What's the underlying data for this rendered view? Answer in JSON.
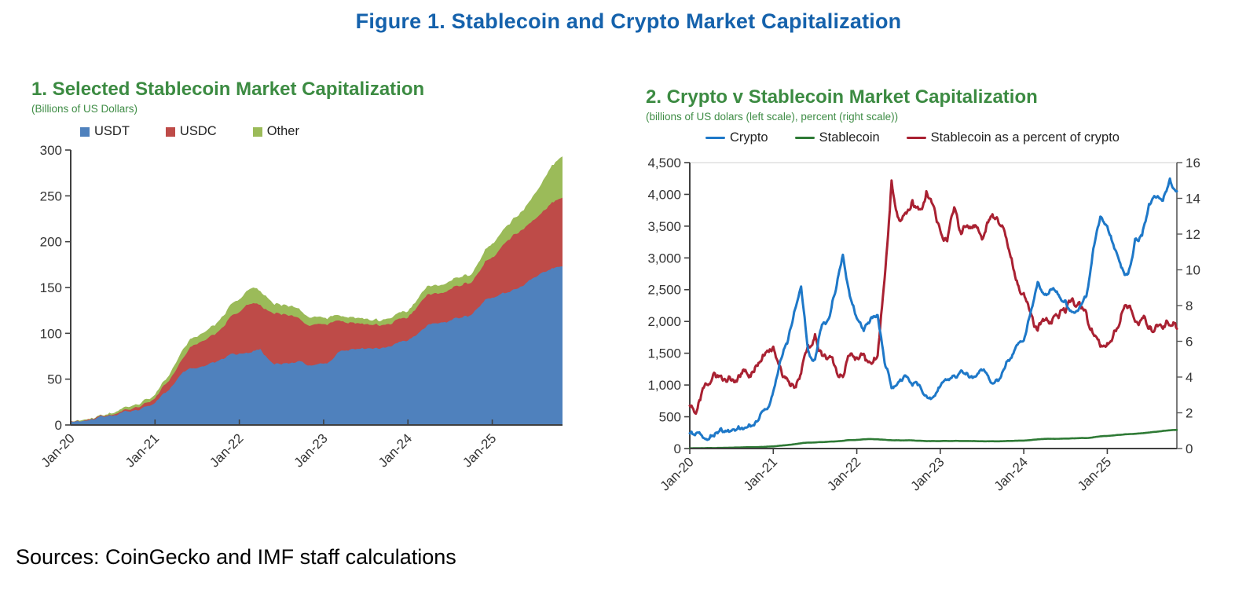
{
  "figure_title": "Figure 1. Stablecoin and Crypto Market Capitalization",
  "source_note": "Sources: CoinGecko and IMF staff calculations",
  "colors": {
    "title_blue": "#1562ac",
    "heading_green": "#3c8b42",
    "axis_dark": "#404040",
    "axis_light": "#d9d9d9",
    "tick_text": "#333333"
  },
  "chart_data": [
    {
      "id": "selected-stablecoin-market-cap",
      "type": "area",
      "stacked": true,
      "title": "1. Selected Stablecoin Market Capitalization",
      "subtitle": "(Billions of US Dollars)",
      "frequency": "monthly",
      "x_start": "Jan-20",
      "x_end": "Nov-25",
      "x_count": 71,
      "xtick_labels": [
        "Jan-20",
        "Jan-21",
        "Jan-22",
        "Jan-23",
        "Jan-24",
        "Jan-25"
      ],
      "xtick_month_index": [
        0,
        12,
        24,
        36,
        48,
        60
      ],
      "ylim": [
        0,
        300
      ],
      "yticks": [
        0,
        50,
        100,
        150,
        200,
        250,
        300
      ],
      "grid": false,
      "legend_position": "top",
      "series": [
        {
          "name": "USDT",
          "color": "#4f81bd",
          "values": [
            4.1,
            4.4,
            4.6,
            6.4,
            8.8,
            9.2,
            10,
            13,
            15,
            15.9,
            17.5,
            20.8,
            24,
            33,
            38,
            48,
            58,
            62,
            62,
            64,
            68,
            70,
            73,
            78,
            78,
            79,
            81,
            83,
            73,
            66,
            66,
            67,
            68,
            69,
            65,
            66,
            67,
            70,
            79,
            81,
            83,
            83,
            83,
            83,
            83,
            85,
            88,
            91,
            92,
            97,
            104,
            110,
            111,
            112,
            114,
            117,
            119,
            120,
            128,
            137,
            139,
            142,
            144,
            148,
            151,
            156,
            161,
            166,
            169,
            172,
            173
          ]
        },
        {
          "name": "USDC",
          "color": "#be4b48",
          "values": [
            0.5,
            0.5,
            0.7,
            0.7,
            0.7,
            1,
            1.1,
            1.4,
            1.9,
            2.8,
            2.9,
            3.9,
            5,
            8,
            10,
            12,
            15,
            23,
            26,
            28,
            30,
            32,
            36,
            42,
            45,
            52,
            52,
            48,
            52,
            55,
            54,
            52,
            50,
            44,
            43,
            44,
            43,
            42,
            35,
            31,
            29,
            28,
            27,
            26,
            25,
            25,
            25,
            25,
            25,
            28,
            32,
            33,
            33,
            32,
            34,
            35,
            36,
            35,
            38,
            42,
            44,
            49,
            56,
            60,
            61,
            62,
            63,
            65,
            70,
            73,
            75
          ]
        },
        {
          "name": "Other",
          "color": "#9bbb59",
          "values": [
            0.6,
            0.6,
            0.7,
            0.8,
            0.9,
            1.2,
            1.6,
            2.5,
            3,
            3.1,
            3.3,
            3.6,
            4,
            5,
            6,
            8,
            10,
            9,
            8,
            9,
            10,
            11,
            12,
            13,
            14,
            15,
            17,
            15,
            14,
            10,
            10,
            10,
            10,
            10,
            9,
            8,
            7,
            7,
            6,
            6,
            6,
            6,
            6,
            5,
            5,
            6,
            6,
            7,
            7,
            8,
            9,
            9,
            9,
            9,
            9,
            9,
            9,
            9,
            11,
            13,
            15,
            16,
            17,
            18,
            20,
            23,
            28,
            32,
            38,
            42,
            45
          ]
        }
      ]
    },
    {
      "id": "crypto-vs-stablecoin-market-cap",
      "type": "line",
      "title": "2. Crypto v Stablecoin Market Capitalization",
      "subtitle": "(billions of US dolars (left scale), percent (right scale))",
      "frequency": "monthly",
      "x_start": "Jan-20",
      "x_end": "Nov-25",
      "x_count": 71,
      "xtick_labels": [
        "Jan-20",
        "Jan-21",
        "Jan-22",
        "Jan-23",
        "Jan-24",
        "Jan-25"
      ],
      "xtick_month_index": [
        0,
        12,
        24,
        36,
        48,
        60
      ],
      "ylim_left": [
        0,
        4500
      ],
      "yticks_left": [
        0,
        500,
        1000,
        1500,
        2000,
        2500,
        3000,
        3500,
        4000,
        4500
      ],
      "ylim_right": [
        0,
        16
      ],
      "yticks_right": [
        0,
        2,
        4,
        6,
        8,
        10,
        12,
        14,
        16
      ],
      "grid": false,
      "legend_position": "top",
      "series": [
        {
          "name": "Crypto",
          "axis": "left",
          "color": "#1e78c8",
          "values": [
            240,
            250,
            165,
            210,
            240,
            260,
            280,
            350,
            330,
            360,
            480,
            620,
            900,
            1380,
            1650,
            2150,
            2550,
            1550,
            1400,
            1950,
            2050,
            2500,
            3050,
            2400,
            2050,
            1850,
            2050,
            2100,
            1350,
            950,
            1050,
            1150,
            990,
            1000,
            830,
            810,
            980,
            1080,
            1150,
            1230,
            1150,
            1130,
            1230,
            1100,
            1080,
            1220,
            1400,
            1630,
            1700,
            2150,
            2620,
            2420,
            2500,
            2420,
            2330,
            2150,
            2220,
            2400,
            3150,
            3650,
            3500,
            3150,
            2850,
            2750,
            3300,
            3350,
            3850,
            3950,
            3900,
            4250,
            4050
          ]
        },
        {
          "name": "Stablecoin",
          "axis": "left",
          "color": "#2e7a35",
          "values": [
            5.2,
            5.5,
            6,
            7.9,
            10.4,
            11.4,
            12.7,
            16.9,
            19.9,
            21.8,
            23.7,
            28.3,
            33,
            46,
            54,
            68,
            83,
            94,
            96,
            101,
            108,
            113,
            121,
            133,
            137,
            146,
            150,
            146,
            139,
            131,
            130,
            129,
            128,
            123,
            117,
            118,
            117,
            119,
            120,
            118,
            118,
            117,
            116,
            114,
            113,
            116,
            119,
            123,
            124,
            133,
            145,
            152,
            153,
            153,
            157,
            161,
            164,
            164,
            177,
            192,
            198,
            207,
            217,
            226,
            232,
            241,
            252,
            263,
            277,
            287,
            293
          ]
        },
        {
          "name": "Stablecoin as a percent of crypto",
          "axis": "right",
          "color": "#a92132",
          "values": [
            2.4,
            2.1,
            3.4,
            3.7,
            4.1,
            3.9,
            3.8,
            4.1,
            4.4,
            4.3,
            4.8,
            5.4,
            5.7,
            4.6,
            3.9,
            3.4,
            4.2,
            5.8,
            6.4,
            5.2,
            5.1,
            4.5,
            4,
            5.2,
            5.1,
            5.3,
            4.8,
            5.2,
            9.5,
            15,
            12.9,
            13.2,
            13.9,
            13.4,
            14.4,
            13.6,
            12.2,
            11.6,
            13.5,
            12,
            12.4,
            12.5,
            11.7,
            12.8,
            12.9,
            12.4,
            10.9,
            9.4,
            8.7,
            7.6,
            6.6,
            7.2,
            7,
            7.3,
            7.6,
            8.4,
            8.2,
            7.6,
            6.4,
            5.7,
            5.9,
            6.6,
            7.5,
            7.9,
            7.1,
            7.3,
            6.7,
            6.9,
            6.7,
            6.9,
            6.7
          ]
        }
      ]
    }
  ]
}
